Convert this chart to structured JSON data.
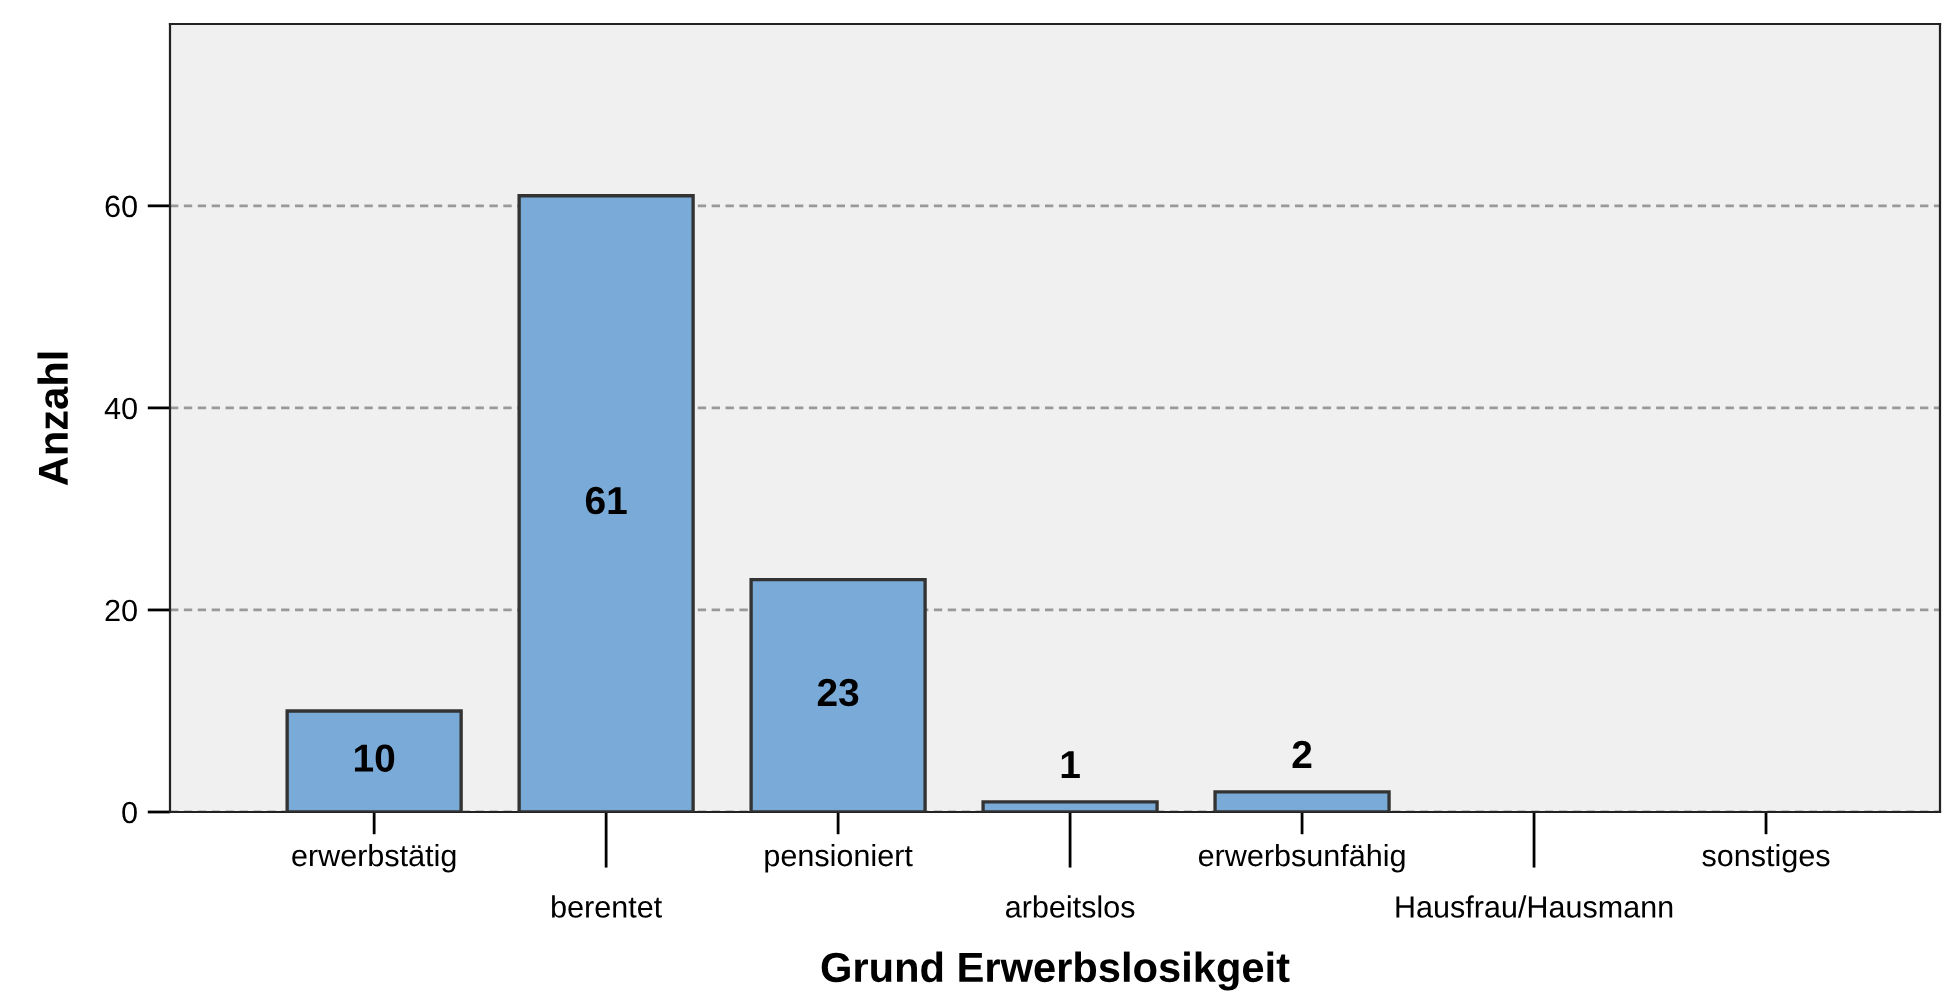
{
  "chart_data": {
    "type": "bar",
    "xlabel": "Grund Erwerbslosikgeit",
    "ylabel": "Anzahl",
    "categories": [
      "erwerbstätig",
      "berentet",
      "pensioniert",
      "arbeitslos",
      "erwerbsunfähig",
      "Hausfrau/Hausmann",
      "sonstiges"
    ],
    "values": [
      10,
      61,
      23,
      1,
      2,
      0,
      0
    ],
    "value_labels": [
      "10",
      "61",
      "23",
      "1",
      "2",
      null,
      null
    ],
    "color": "#7aaad8",
    "ylim": [
      0,
      78
    ],
    "yticks": [
      0,
      20,
      40,
      60
    ],
    "grid": "y"
  }
}
